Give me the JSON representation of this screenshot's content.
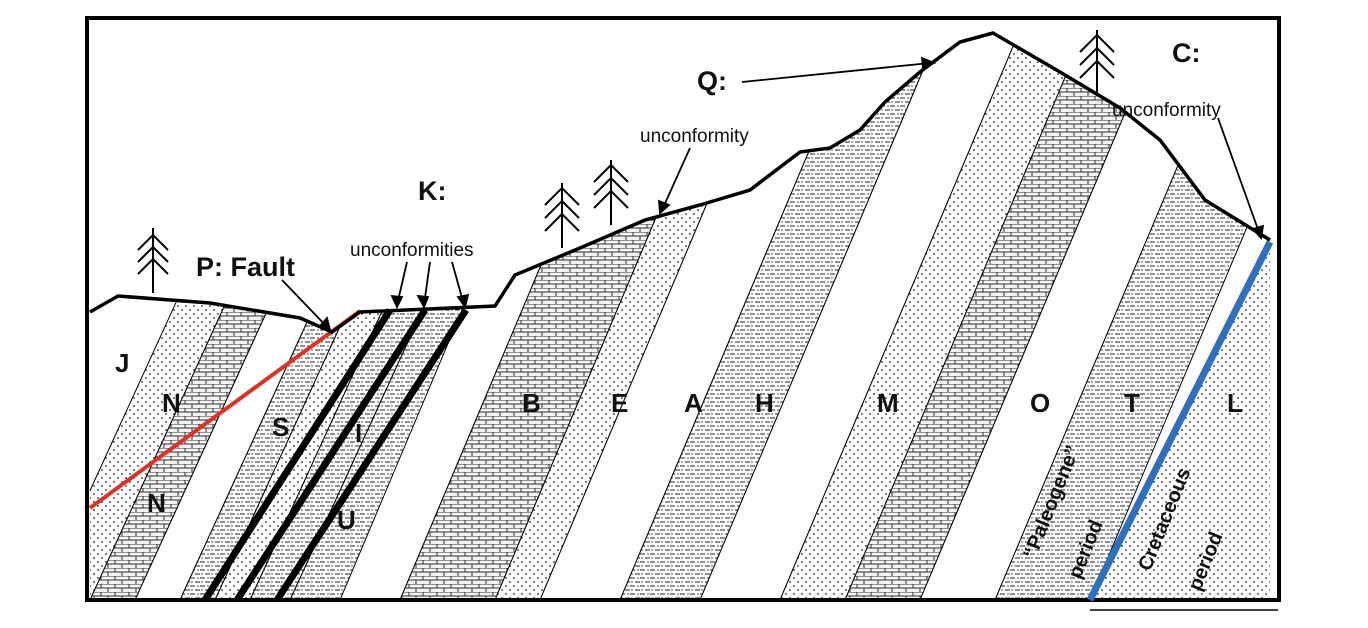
{
  "labels": {
    "fault": "P: Fault",
    "k": "K:",
    "unconformities": "unconformities",
    "q": "Q:",
    "unconformity_mid": "unconformity",
    "c": "C:",
    "unconformity_right": "unconformity"
  },
  "units": {
    "J": "J",
    "N_upper": "N",
    "N_lower": "N",
    "S": "S",
    "I": "I",
    "U": "U",
    "B": "B",
    "E": "E",
    "A": "A",
    "H": "H",
    "M": "M",
    "O": "O",
    "T": "T",
    "L": "L"
  },
  "periods": {
    "paleogene": "“Paleogene”",
    "period_left": "period",
    "cretaceous": "Cretaceous",
    "period_right": "period"
  },
  "colors": {
    "fault": "#d8342a",
    "unconformity_c": "#2f6fbf",
    "outline": "#000000"
  }
}
